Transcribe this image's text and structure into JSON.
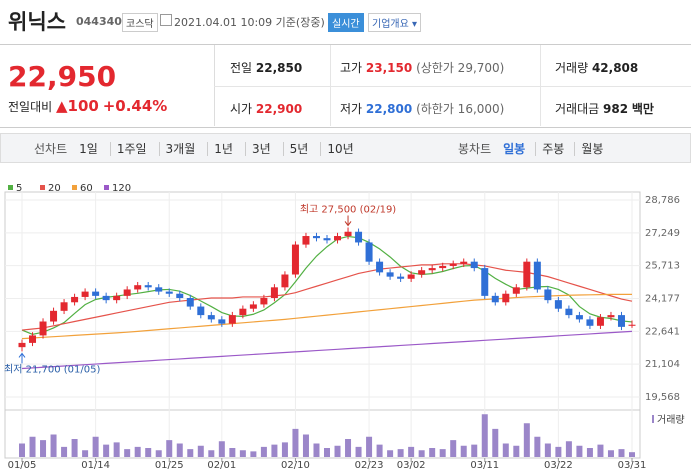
{
  "header": {
    "name": "위닉스",
    "code": "044340",
    "market": "코스닥",
    "time": "2021.04.01 10:09 기준(장중)",
    "realtime": "실시간",
    "company": "기업개요"
  },
  "quote": {
    "price": "22,950",
    "change_label": "전일대비",
    "change": "100",
    "change_pct": "+0.44%"
  },
  "stats": [
    {
      "label": "전일",
      "value": "22,850"
    },
    {
      "label": "고가",
      "value": "23,150",
      "note": "(상한가 29,700)"
    },
    {
      "label": "거래량",
      "value": "42,808"
    },
    {
      "label": "시가",
      "value": "22,900"
    },
    {
      "label": "저가",
      "value": "22,800",
      "note": "(하한가 16,000)"
    },
    {
      "label": "거래대금",
      "value": "982",
      "unit": "백만"
    }
  ],
  "tabs": {
    "line_label": "선차트",
    "line": [
      "1일",
      "1주일",
      "3개월",
      "1년",
      "3년",
      "5년",
      "10년"
    ],
    "candle_label": "봉차트",
    "candle": [
      "일봉",
      "주봉",
      "월봉"
    ]
  },
  "chart_data": {
    "type": "candlestick",
    "categories": [
      "01/05",
      null,
      null,
      null,
      null,
      null,
      null,
      "01/14",
      null,
      null,
      null,
      null,
      null,
      null,
      "01/25",
      null,
      null,
      null,
      null,
      "02/01",
      null,
      null,
      null,
      null,
      null,
      null,
      "02/10",
      null,
      null,
      null,
      null,
      null,
      null,
      "02/23",
      null,
      null,
      null,
      "03/02",
      null,
      null,
      null,
      null,
      null,
      null,
      "03/11",
      null,
      null,
      null,
      null,
      null,
      null,
      "03/22",
      null,
      null,
      null,
      null,
      null,
      null,
      "03/31"
    ],
    "open": [
      21900,
      22100,
      22450,
      23100,
      23600,
      24000,
      24250,
      24500,
      24300,
      24100,
      24300,
      24600,
      24800,
      24700,
      24500,
      24400,
      24200,
      23800,
      23400,
      23200,
      23000,
      23400,
      23700,
      23900,
      24200,
      24700,
      25300,
      26700,
      27100,
      27000,
      26900,
      27100,
      27300,
      26800,
      25900,
      25400,
      25200,
      25100,
      25300,
      25500,
      25600,
      25700,
      25800,
      25900,
      25600,
      24300,
      24000,
      24400,
      24700,
      25900,
      24600,
      24100,
      23700,
      23400,
      23200,
      22900,
      23300,
      23400,
      22900
    ],
    "high": [
      22250,
      22600,
      23250,
      23750,
      24150,
      24400,
      24650,
      24650,
      24450,
      24450,
      24750,
      24950,
      24950,
      24850,
      24650,
      24550,
      24350,
      23950,
      23550,
      23350,
      23550,
      23850,
      24050,
      24350,
      24850,
      25450,
      26850,
      27250,
      27250,
      27150,
      27250,
      27500,
      27450,
      26950,
      26050,
      25550,
      25350,
      25450,
      25650,
      25750,
      25850,
      25950,
      26050,
      26050,
      25750,
      24450,
      24550,
      24850,
      26050,
      26050,
      24750,
      24250,
      23850,
      23550,
      23350,
      23450,
      23550,
      23550,
      23150
    ],
    "low": [
      21700,
      21950,
      22300,
      22950,
      23450,
      23850,
      24100,
      24150,
      23950,
      23950,
      24150,
      24450,
      24550,
      24350,
      24250,
      24050,
      23650,
      23250,
      23050,
      22850,
      22850,
      23250,
      23550,
      23750,
      24050,
      24550,
      25150,
      26550,
      26850,
      26750,
      26750,
      26950,
      26650,
      25750,
      25250,
      25050,
      24950,
      24950,
      25150,
      25350,
      25450,
      25550,
      25650,
      25450,
      24150,
      23850,
      23850,
      24250,
      24550,
      24450,
      23950,
      23550,
      23250,
      23050,
      22750,
      22750,
      23150,
      22700,
      22800
    ],
    "close": [
      22100,
      22450,
      23100,
      23600,
      24000,
      24250,
      24500,
      24300,
      24100,
      24300,
      24600,
      24800,
      24700,
      24500,
      24400,
      24200,
      23800,
      23400,
      23200,
      23000,
      23400,
      23700,
      23900,
      24200,
      24700,
      25300,
      26700,
      27100,
      27000,
      26900,
      27100,
      27300,
      26800,
      25900,
      25400,
      25200,
      25100,
      25300,
      25500,
      25600,
      25700,
      25800,
      25900,
      25600,
      24300,
      24000,
      24400,
      24700,
      25900,
      24600,
      24100,
      23700,
      23400,
      23200,
      22900,
      23300,
      23400,
      22850,
      22950
    ],
    "up_color": "#e3282f",
    "down_color": "#2f6fd6",
    "series": [
      {
        "name": "5",
        "color": "#52b043",
        "values": [
          22700,
          22500,
          22600,
          22800,
          23050,
          23480,
          23890,
          24130,
          24230,
          24290,
          24360,
          24420,
          24500,
          24580,
          24600,
          24520,
          24320,
          24060,
          23800,
          23520,
          23360,
          23340,
          23440,
          23640,
          23980,
          24360,
          24960,
          25600,
          26160,
          26600,
          26960,
          27080,
          27020,
          26800,
          26500,
          26120,
          25680,
          25380,
          25300,
          25340,
          25440,
          25580,
          25700,
          25720,
          25460,
          25120,
          24840,
          24600,
          24660,
          24720,
          24740,
          24600,
          24340,
          23800,
          23460,
          23300,
          23240,
          23130,
          23080
        ]
      },
      {
        "name": "20",
        "color": "#e5534b",
        "values": [
          22700,
          22750,
          22800,
          22900,
          23000,
          23100,
          23200,
          23300,
          23400,
          23500,
          23600,
          23700,
          23800,
          23900,
          24000,
          24050,
          24100,
          24150,
          24200,
          24200,
          24200,
          24250,
          24250,
          24250,
          24300,
          24350,
          24450,
          24600,
          24750,
          24900,
          25050,
          25200,
          25350,
          25450,
          25550,
          25600,
          25650,
          25700,
          25750,
          25750,
          25800,
          25800,
          25800,
          25750,
          25700,
          25600,
          25500,
          25450,
          25400,
          25300,
          25200,
          25050,
          24900,
          24750,
          24600,
          24450,
          24300,
          24150,
          24050
        ]
      },
      {
        "name": "60",
        "color": "#f2a13b",
        "values": [
          22300,
          22330,
          22360,
          22390,
          22420,
          22450,
          22480,
          22510,
          22540,
          22570,
          22600,
          22640,
          22680,
          22720,
          22760,
          22800,
          22840,
          22880,
          22920,
          22960,
          23000,
          23040,
          23080,
          23120,
          23160,
          23200,
          23250,
          23300,
          23350,
          23400,
          23450,
          23500,
          23550,
          23600,
          23650,
          23700,
          23750,
          23800,
          23850,
          23900,
          23950,
          24000,
          24050,
          24100,
          24130,
          24160,
          24190,
          24220,
          24250,
          24270,
          24290,
          24310,
          24330,
          24340,
          24350,
          24360,
          24370,
          24370,
          24370
        ]
      },
      {
        "name": "120",
        "color": "#9b59c8",
        "values": [
          20900,
          20930,
          20960,
          20990,
          21020,
          21050,
          21080,
          21110,
          21140,
          21170,
          21200,
          21230,
          21260,
          21290,
          21320,
          21350,
          21380,
          21410,
          21440,
          21470,
          21500,
          21530,
          21560,
          21590,
          21620,
          21650,
          21680,
          21710,
          21740,
          21770,
          21800,
          21830,
          21860,
          21890,
          21920,
          21950,
          21980,
          22010,
          22040,
          22070,
          22100,
          22130,
          22160,
          22190,
          22220,
          22250,
          22280,
          22310,
          22340,
          22370,
          22400,
          22430,
          22460,
          22490,
          22520,
          22550,
          22580,
          22610,
          22640
        ]
      }
    ],
    "volume": {
      "name": "거래량",
      "color": "#9b86c9",
      "ylim": [
        0,
        400000
      ],
      "values": [
        120000,
        180000,
        150000,
        200000,
        90000,
        160000,
        60000,
        180000,
        110000,
        130000,
        70000,
        90000,
        80000,
        60000,
        150000,
        120000,
        70000,
        100000,
        60000,
        140000,
        80000,
        60000,
        50000,
        90000,
        110000,
        130000,
        250000,
        200000,
        120000,
        80000,
        100000,
        160000,
        90000,
        180000,
        110000,
        60000,
        70000,
        90000,
        60000,
        80000,
        70000,
        150000,
        100000,
        110000,
        380000,
        250000,
        120000,
        100000,
        300000,
        180000,
        120000,
        90000,
        140000,
        100000,
        80000,
        110000,
        60000,
        70000,
        42808
      ]
    },
    "ylim": [
      19568,
      28786
    ],
    "yticks": [
      {
        "value": 19568,
        "label": "19,568"
      },
      {
        "value": 21104,
        "label": "21,104"
      },
      {
        "value": 22641,
        "label": "22,641"
      },
      {
        "value": 24177,
        "label": "24,177"
      },
      {
        "value": 25713,
        "label": "25,713"
      },
      {
        "value": 27249,
        "label": "27,249"
      },
      {
        "value": 28786,
        "label": "28,786"
      }
    ],
    "grid": true,
    "annotations": [
      "최고 27,500 (02/19)",
      "최저 21,700 (01/05)"
    ]
  }
}
